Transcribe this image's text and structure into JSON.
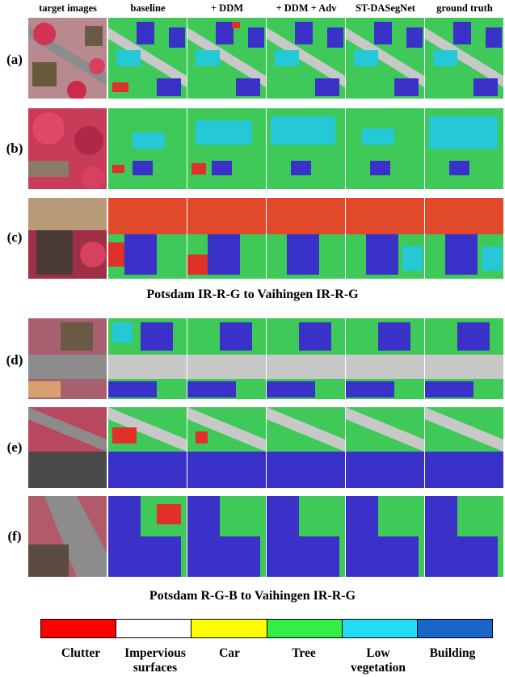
{
  "columns": [
    "target images",
    "baseline",
    "+ DDM",
    "+ DDM + Adv",
    "ST-DASegNet",
    "ground truth"
  ],
  "rows": [
    "(a)",
    "(b)",
    "(c)",
    "(d)",
    "(e)",
    "(f)"
  ],
  "captions": {
    "top": "Potsdam IR-R-G to Vaihingen IR-R-G",
    "bottom": "Potsdam R-G-B to Vaihingen IR-R-G"
  },
  "legend": [
    {
      "label": "Clutter",
      "color": "#ff0000"
    },
    {
      "label": "Impervious surfaces",
      "color": "#ffffff"
    },
    {
      "label": "Car",
      "color": "#ffff00"
    },
    {
      "label": "Tree",
      "color": "#33ee44"
    },
    {
      "label": "Low vegetation",
      "color": "#22ddf5"
    },
    {
      "label": "Building",
      "color": "#1a66c8"
    }
  ]
}
